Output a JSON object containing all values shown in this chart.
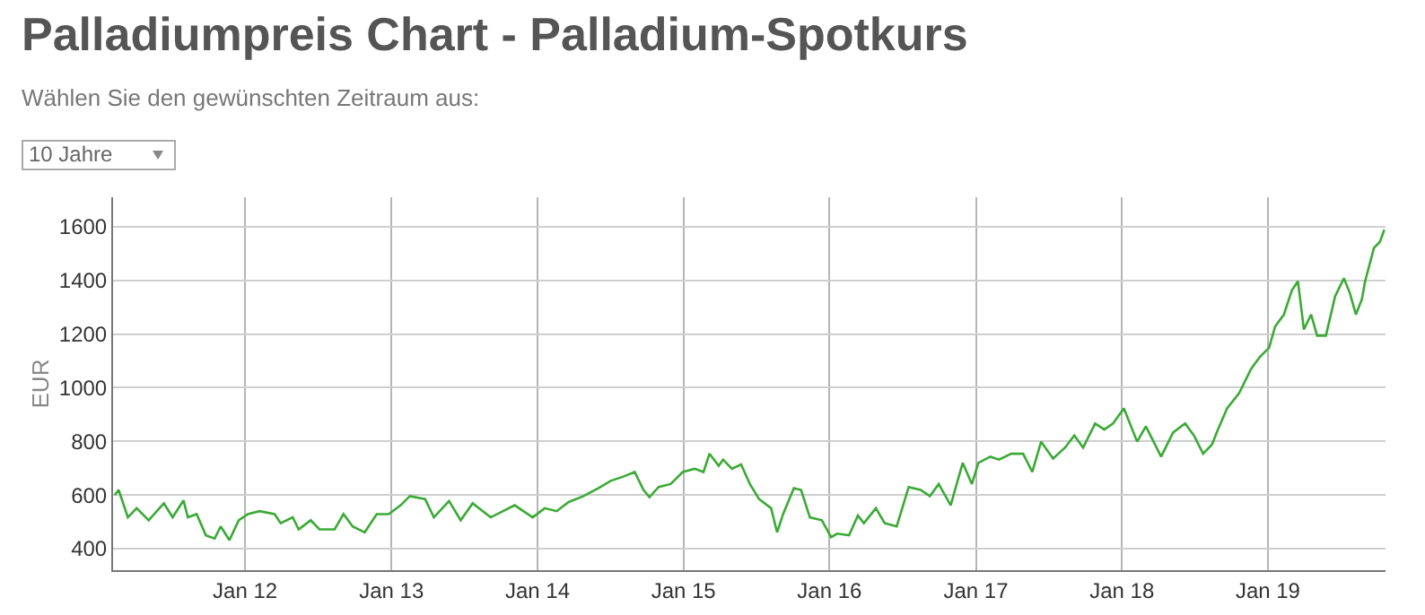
{
  "chart_data": {
    "type": "line",
    "title": "Palladiumpreis Chart - Palladium-Spotkurs",
    "subtitle": "Wählen Sie den gewünschten Zeitraum aus:",
    "annotations": [
      "10 Jahre"
    ],
    "ylabel": "EUR",
    "xlim": [
      "2011-02-05",
      "2019-10-22"
    ],
    "ylim": [
      320,
      1710
    ],
    "xticks": [
      {
        "value": "2012-01-01",
        "label": "Jan 12"
      },
      {
        "value": "2013-01-01",
        "label": "Jan 13"
      },
      {
        "value": "2014-01-01",
        "label": "Jan 14"
      },
      {
        "value": "2015-01-01",
        "label": "Jan 15"
      },
      {
        "value": "2016-01-01",
        "label": "Jan 16"
      },
      {
        "value": "2017-01-01",
        "label": "Jan 17"
      },
      {
        "value": "2018-01-01",
        "label": "Jan 18"
      },
      {
        "value": "2019-01-01",
        "label": "Jan 19"
      }
    ],
    "yticks": [
      400,
      600,
      800,
      1000,
      1200,
      1400,
      1600
    ],
    "grid": true,
    "marker": "none",
    "line_style": "solid",
    "x": [
      "2011-02-09",
      "2011-02-19",
      "2011-03-14",
      "2011-04-05",
      "2011-05-05",
      "2011-06-12",
      "2011-07-04",
      "2011-07-31",
      "2011-08-11",
      "2011-09-02",
      "2011-09-25",
      "2011-10-17",
      "2011-11-01",
      "2011-11-23",
      "2011-12-16",
      "2012-01-08",
      "2012-02-06",
      "2012-03-15",
      "2012-03-30",
      "2012-04-29",
      "2012-05-14",
      "2012-06-13",
      "2012-07-05",
      "2012-08-12",
      "2012-09-03",
      "2012-09-26",
      "2012-10-26",
      "2012-11-25",
      "2012-12-25",
      "2013-01-24",
      "2013-02-16",
      "2013-03-26",
      "2013-04-17",
      "2013-05-25",
      "2013-06-23",
      "2013-07-23",
      "2013-09-06",
      "2013-11-05",
      "2013-12-20",
      "2014-01-19",
      "2014-02-18",
      "2014-03-20",
      "2014-04-26",
      "2014-06-03",
      "2014-07-03",
      "2014-08-02",
      "2014-09-01",
      "2014-09-23",
      "2014-10-08",
      "2014-10-31",
      "2014-11-30",
      "2014-12-30",
      "2015-01-29",
      "2015-02-20",
      "2015-03-07",
      "2015-03-30",
      "2015-04-10",
      "2015-05-02",
      "2015-05-25",
      "2015-06-16",
      "2015-07-09",
      "2015-08-08",
      "2015-08-23",
      "2015-09-07",
      "2015-10-04",
      "2015-10-22",
      "2015-11-13",
      "2015-12-13",
      "2016-01-05",
      "2016-01-20",
      "2016-02-19",
      "2016-03-12",
      "2016-03-27",
      "2016-04-26",
      "2016-05-18",
      "2016-06-17",
      "2016-07-17",
      "2016-08-16",
      "2016-09-08",
      "2016-09-30",
      "2016-10-30",
      "2016-11-29",
      "2016-12-22",
      "2017-01-07",
      "2017-02-06",
      "2017-02-28",
      "2017-03-30",
      "2017-04-29",
      "2017-05-22",
      "2017-06-13",
      "2017-07-13",
      "2017-08-12",
      "2017-09-04",
      "2017-09-26",
      "2017-10-26",
      "2017-11-18",
      "2017-12-10",
      "2018-01-06",
      "2018-02-08",
      "2018-03-02",
      "2018-04-09",
      "2018-05-09",
      "2018-06-08",
      "2018-06-30",
      "2018-07-23",
      "2018-08-14",
      "2018-08-29",
      "2018-09-21",
      "2018-10-21",
      "2018-11-20",
      "2018-12-12",
      "2019-01-04",
      "2019-01-19",
      "2019-02-10",
      "2019-03-02",
      "2019-03-17",
      "2019-04-01",
      "2019-04-19",
      "2019-05-04",
      "2019-05-26",
      "2019-06-18",
      "2019-07-10",
      "2019-07-25",
      "2019-08-09",
      "2019-08-24",
      "2019-09-01",
      "2019-09-23",
      "2019-10-08",
      "2019-10-19"
    ],
    "series": [
      {
        "color": "#3aaa35",
        "values": [
          600,
          619,
          517,
          551,
          506,
          569,
          517,
          580,
          517,
          529,
          450,
          438,
          483,
          432,
          506,
          529,
          540,
          529,
          495,
          517,
          472,
          506,
          472,
          472,
          529,
          483,
          461,
          529,
          529,
          562,
          596,
          585,
          517,
          578,
          506,
          569,
          517,
          562,
          517,
          551,
          540,
          574,
          596,
          626,
          653,
          668,
          686,
          619,
          592,
          630,
          641,
          686,
          698,
          686,
          754,
          709,
          732,
          698,
          714,
          641,
          585,
          551,
          461,
          529,
          626,
          619,
          517,
          506,
          443,
          456,
          450,
          524,
          495,
          551,
          495,
          483,
          630,
          619,
          596,
          641,
          562,
          720,
          641,
          720,
          743,
          732,
          754,
          754,
          686,
          799,
          736,
          777,
          822,
          777,
          867,
          844,
          867,
          923,
          799,
          856,
          743,
          833,
          867,
          822,
          754,
          788,
          844,
          923,
          980,
          1070,
          1115,
          1149,
          1228,
          1273,
          1363,
          1397,
          1217,
          1273,
          1194,
          1194,
          1341,
          1408,
          1352,
          1273,
          1330,
          1397,
          1521,
          1544,
          1589
        ]
      }
    ]
  }
}
